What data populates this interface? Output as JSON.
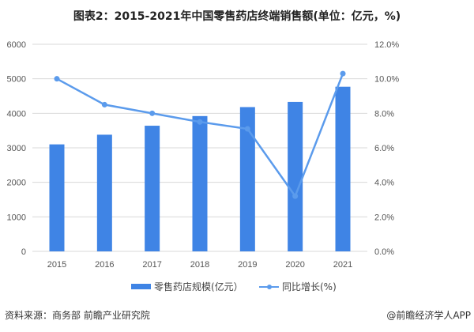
{
  "chart_data": {
    "type": "bar+line",
    "title": "图表2：2015-2021年中国零售药店终端销售额(单位：亿元，%)",
    "categories": [
      "2015",
      "2016",
      "2017",
      "2018",
      "2019",
      "2020",
      "2021"
    ],
    "series": [
      {
        "name": "零售药店规模(亿元）",
        "type": "bar",
        "axis": "left",
        "values": [
          3100,
          3380,
          3640,
          3920,
          4180,
          4330,
          4770
        ]
      },
      {
        "name": "同比增长(%)",
        "type": "line",
        "axis": "right",
        "values": [
          10.0,
          8.5,
          8.0,
          7.5,
          7.1,
          3.2,
          10.3
        ]
      }
    ],
    "y_left": {
      "range": [
        0,
        6000
      ],
      "ticks": [
        "0",
        "1000",
        "2000",
        "3000",
        "4000",
        "5000",
        "6000"
      ]
    },
    "y_right": {
      "range": [
        0,
        12
      ],
      "ticks": [
        "0.0%",
        "2.0%",
        "4.0%",
        "6.0%",
        "8.0%",
        "10.0%",
        "12.0%"
      ]
    },
    "grid": true,
    "legend": "bottom",
    "colors": {
      "bar": "#3f84e5",
      "line": "#5b9bec",
      "grid": "#d9d9d9"
    }
  },
  "footer": {
    "source": "资料来源：商务部 前瞻产业研究院",
    "brand": "@前瞻经济学人APP"
  }
}
